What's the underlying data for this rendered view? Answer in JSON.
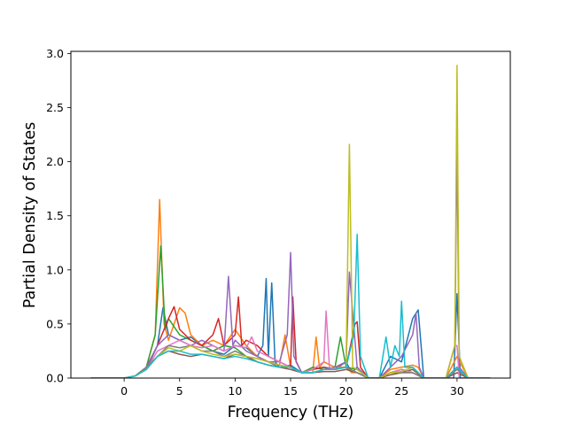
{
  "chart_data": {
    "type": "line",
    "title": "",
    "xlabel": "Frequency (THz)",
    "ylabel": "Partial Density of States",
    "xlim": [
      -4.8,
      34.8
    ],
    "ylim": [
      0,
      3.02
    ],
    "xticks": [
      0,
      5,
      10,
      15,
      20,
      25,
      30
    ],
    "yticks": [
      0.0,
      0.5,
      1.0,
      1.5,
      2.0,
      2.5,
      3.0
    ],
    "xtick_labels": [
      "0",
      "5",
      "10",
      "15",
      "20",
      "25",
      "30"
    ],
    "ytick_labels": [
      "0.0",
      "0.5",
      "1.0",
      "1.5",
      "2.0",
      "2.5",
      "3.0"
    ],
    "grid": false,
    "legend": "none",
    "series": [
      {
        "color": "#1f77b4",
        "x": [
          -3,
          0,
          1,
          2,
          3,
          3.5,
          4,
          5,
          6,
          7,
          8,
          9,
          10,
          11,
          12,
          12.5,
          12.8,
          13,
          13.3,
          13.6,
          14,
          15,
          16,
          17,
          18,
          19,
          20,
          20.5,
          21,
          22,
          23,
          24,
          25,
          26,
          26.5,
          27,
          28,
          29,
          29.7,
          30,
          30.3,
          31,
          33
        ],
        "y": [
          0,
          0,
          0.02,
          0.08,
          0.3,
          0.65,
          0.4,
          0.35,
          0.38,
          0.3,
          0.25,
          0.22,
          0.3,
          0.28,
          0.2,
          0.3,
          0.92,
          0.2,
          0.88,
          0.15,
          0.1,
          0.12,
          0.05,
          0.08,
          0.1,
          0.08,
          0.15,
          0.05,
          0.1,
          0,
          0,
          0.2,
          0.15,
          0.55,
          0.63,
          0,
          0,
          0,
          0,
          0.78,
          0,
          0,
          0
        ]
      },
      {
        "color": "#ff7f0e",
        "x": [
          -3,
          0,
          1,
          2,
          2.8,
          3.2,
          3.6,
          4,
          5,
          5.5,
          6,
          7,
          8,
          9,
          10,
          11,
          12,
          13,
          14,
          14.5,
          15,
          16,
          17,
          17.3,
          17.6,
          18,
          19,
          20,
          20.5,
          21,
          22,
          23,
          24,
          25,
          26,
          26.5,
          27,
          28,
          29,
          30,
          31,
          33
        ],
        "y": [
          0,
          0,
          0.02,
          0.1,
          0.4,
          1.65,
          0.5,
          0.35,
          0.65,
          0.6,
          0.4,
          0.3,
          0.35,
          0.3,
          0.45,
          0.3,
          0.2,
          0.15,
          0.12,
          0.4,
          0.1,
          0.05,
          0.05,
          0.38,
          0.1,
          0.15,
          0.1,
          0.1,
          0.05,
          0.05,
          0,
          0,
          0.08,
          0.1,
          0.12,
          0.1,
          0,
          0,
          0,
          0.2,
          0,
          0
        ]
      },
      {
        "color": "#2ca02c",
        "x": [
          -3,
          0,
          1,
          2,
          2.8,
          3.3,
          3.7,
          4,
          5,
          6,
          7,
          8,
          9,
          10,
          11,
          12,
          13,
          14,
          15,
          16,
          17,
          18,
          19,
          19.5,
          20,
          21,
          22,
          23,
          24,
          25,
          26,
          27,
          28,
          29,
          30,
          31,
          33
        ],
        "y": [
          0,
          0,
          0.02,
          0.1,
          0.4,
          1.22,
          0.45,
          0.55,
          0.4,
          0.35,
          0.3,
          0.25,
          0.3,
          0.28,
          0.2,
          0.15,
          0.12,
          0.1,
          0.1,
          0.05,
          0.1,
          0.08,
          0.1,
          0.38,
          0.1,
          0.08,
          0,
          0,
          0.05,
          0.08,
          0.05,
          0,
          0,
          0,
          0.1,
          0,
          0
        ]
      },
      {
        "color": "#d62728",
        "x": [
          -3,
          0,
          1,
          2,
          3,
          4,
          4.5,
          5,
          6,
          7,
          8,
          8.5,
          9,
          10,
          10.3,
          10.6,
          11,
          12,
          13,
          14,
          15,
          15.2,
          15.5,
          16,
          17,
          18,
          19,
          20,
          20.8,
          21,
          21.3,
          22,
          23,
          24,
          25,
          26,
          27,
          28,
          29,
          30,
          31,
          33
        ],
        "y": [
          0,
          0,
          0.02,
          0.1,
          0.3,
          0.55,
          0.66,
          0.45,
          0.35,
          0.3,
          0.4,
          0.55,
          0.3,
          0.4,
          0.75,
          0.3,
          0.35,
          0.3,
          0.2,
          0.15,
          0.1,
          0.75,
          0.15,
          0.05,
          0.08,
          0.1,
          0.08,
          0.1,
          0.5,
          0.52,
          0.1,
          0,
          0,
          0.05,
          0.05,
          0.05,
          0,
          0,
          0,
          0.1,
          0,
          0
        ]
      },
      {
        "color": "#9467bd",
        "x": [
          -3,
          0,
          1,
          2,
          3,
          4,
          5,
          6,
          7,
          8,
          9,
          9.4,
          9.8,
          10,
          11,
          12,
          13,
          14,
          14.7,
          15,
          15.3,
          16,
          17,
          18,
          19,
          20,
          20.3,
          21,
          22,
          23,
          24,
          25,
          26,
          26.3,
          26.6,
          27,
          28,
          29,
          29.8,
          30,
          30.2,
          31,
          33
        ],
        "y": [
          0,
          0,
          0.02,
          0.1,
          0.3,
          0.4,
          0.35,
          0.3,
          0.35,
          0.3,
          0.25,
          0.94,
          0.3,
          0.35,
          0.25,
          0.2,
          0.15,
          0.15,
          0.4,
          1.16,
          0.2,
          0.05,
          0.05,
          0.08,
          0.1,
          0.15,
          0.98,
          0.1,
          0,
          0,
          0.1,
          0.2,
          0.4,
          0.6,
          0.1,
          0,
          0,
          0,
          0.3,
          2.2,
          0.1,
          0,
          0
        ]
      },
      {
        "color": "#8c564b",
        "x": [
          -3,
          0,
          1,
          2,
          3,
          4,
          5,
          6,
          7,
          8,
          9,
          10,
          11,
          12,
          13,
          14,
          15,
          16,
          17,
          18,
          19,
          20,
          21,
          22,
          23,
          24,
          25,
          26,
          27,
          28,
          29,
          30,
          31,
          33
        ],
        "y": [
          0,
          0,
          0.02,
          0.08,
          0.2,
          0.25,
          0.22,
          0.2,
          0.22,
          0.2,
          0.18,
          0.22,
          0.2,
          0.15,
          0.12,
          0.1,
          0.08,
          0.05,
          0.05,
          0.06,
          0.06,
          0.08,
          0.05,
          0,
          0,
          0.03,
          0.05,
          0.08,
          0,
          0,
          0,
          0.05,
          0,
          0
        ]
      },
      {
        "color": "#e377c2",
        "x": [
          -3,
          0,
          1,
          2,
          3,
          4,
          5,
          6,
          7,
          8,
          9,
          10,
          11,
          11.5,
          12,
          13,
          14,
          15,
          16,
          17,
          18,
          18.2,
          18.5,
          19,
          20,
          21,
          22,
          23,
          24,
          25,
          26,
          27,
          28,
          29,
          29.8,
          30,
          30.2,
          31,
          33
        ],
        "y": [
          0,
          0,
          0.02,
          0.08,
          0.25,
          0.3,
          0.35,
          0.3,
          0.28,
          0.3,
          0.25,
          0.3,
          0.28,
          0.38,
          0.25,
          0.2,
          0.15,
          0.1,
          0.05,
          0.08,
          0.15,
          0.62,
          0.1,
          0.08,
          0.1,
          0.05,
          0,
          0,
          0.05,
          0.08,
          0.05,
          0,
          0,
          0,
          0.3,
          0.3,
          0,
          0,
          0
        ]
      },
      {
        "color": "#7f7f7f",
        "x": [
          -3,
          0,
          1,
          2,
          3,
          4,
          5,
          6,
          7,
          8,
          9,
          10,
          11,
          12,
          13,
          14,
          15,
          16,
          17,
          18,
          19,
          20,
          21,
          22,
          23,
          24,
          25,
          26,
          27,
          28,
          29,
          30,
          31,
          33
        ],
        "y": [
          0,
          0,
          0.02,
          0.1,
          0.2,
          0.3,
          0.28,
          0.3,
          0.25,
          0.25,
          0.2,
          0.25,
          0.2,
          0.18,
          0.15,
          0.1,
          0.1,
          0.05,
          0.05,
          0.08,
          0.08,
          0.1,
          0.05,
          0,
          0,
          0.05,
          0.05,
          0.05,
          0,
          0,
          0,
          0.08,
          0,
          0
        ]
      },
      {
        "color": "#bcbd22",
        "x": [
          -3,
          0,
          1,
          2,
          3,
          4,
          5,
          6,
          7,
          8,
          9,
          10,
          11,
          12,
          13,
          14,
          15,
          16,
          17,
          18,
          19,
          20,
          20.3,
          20.6,
          21,
          22,
          23,
          24,
          25,
          26,
          27,
          28,
          29,
          29.8,
          30,
          30.2,
          31,
          33
        ],
        "y": [
          0,
          0,
          0.02,
          0.08,
          0.2,
          0.28,
          0.25,
          0.3,
          0.25,
          0.22,
          0.2,
          0.22,
          0.2,
          0.18,
          0.15,
          0.12,
          0.1,
          0.05,
          0.05,
          0.08,
          0.08,
          0.1,
          2.16,
          0.1,
          0.08,
          0,
          0,
          0.05,
          0.06,
          0.1,
          0,
          0,
          0,
          0.3,
          2.89,
          0.2,
          0,
          0
        ]
      },
      {
        "color": "#17becf",
        "x": [
          -3,
          0,
          1,
          2,
          3,
          4,
          5,
          6,
          7,
          8,
          9,
          10,
          11,
          12,
          13,
          14,
          15,
          16,
          17,
          18,
          19,
          20,
          20.7,
          21,
          21.3,
          22,
          23,
          23.6,
          24,
          24.4,
          24.8,
          25,
          25.3,
          26,
          27,
          28,
          29,
          30,
          31,
          33
        ],
        "y": [
          0,
          0,
          0.02,
          0.08,
          0.2,
          0.25,
          0.25,
          0.22,
          0.22,
          0.2,
          0.18,
          0.2,
          0.18,
          0.15,
          0.12,
          0.1,
          0.1,
          0.05,
          0.05,
          0.08,
          0.08,
          0.1,
          0.4,
          1.33,
          0.2,
          0,
          0,
          0.38,
          0.1,
          0.3,
          0.2,
          0.71,
          0.1,
          0.1,
          0,
          0,
          0,
          0.1,
          0,
          0
        ]
      }
    ]
  }
}
